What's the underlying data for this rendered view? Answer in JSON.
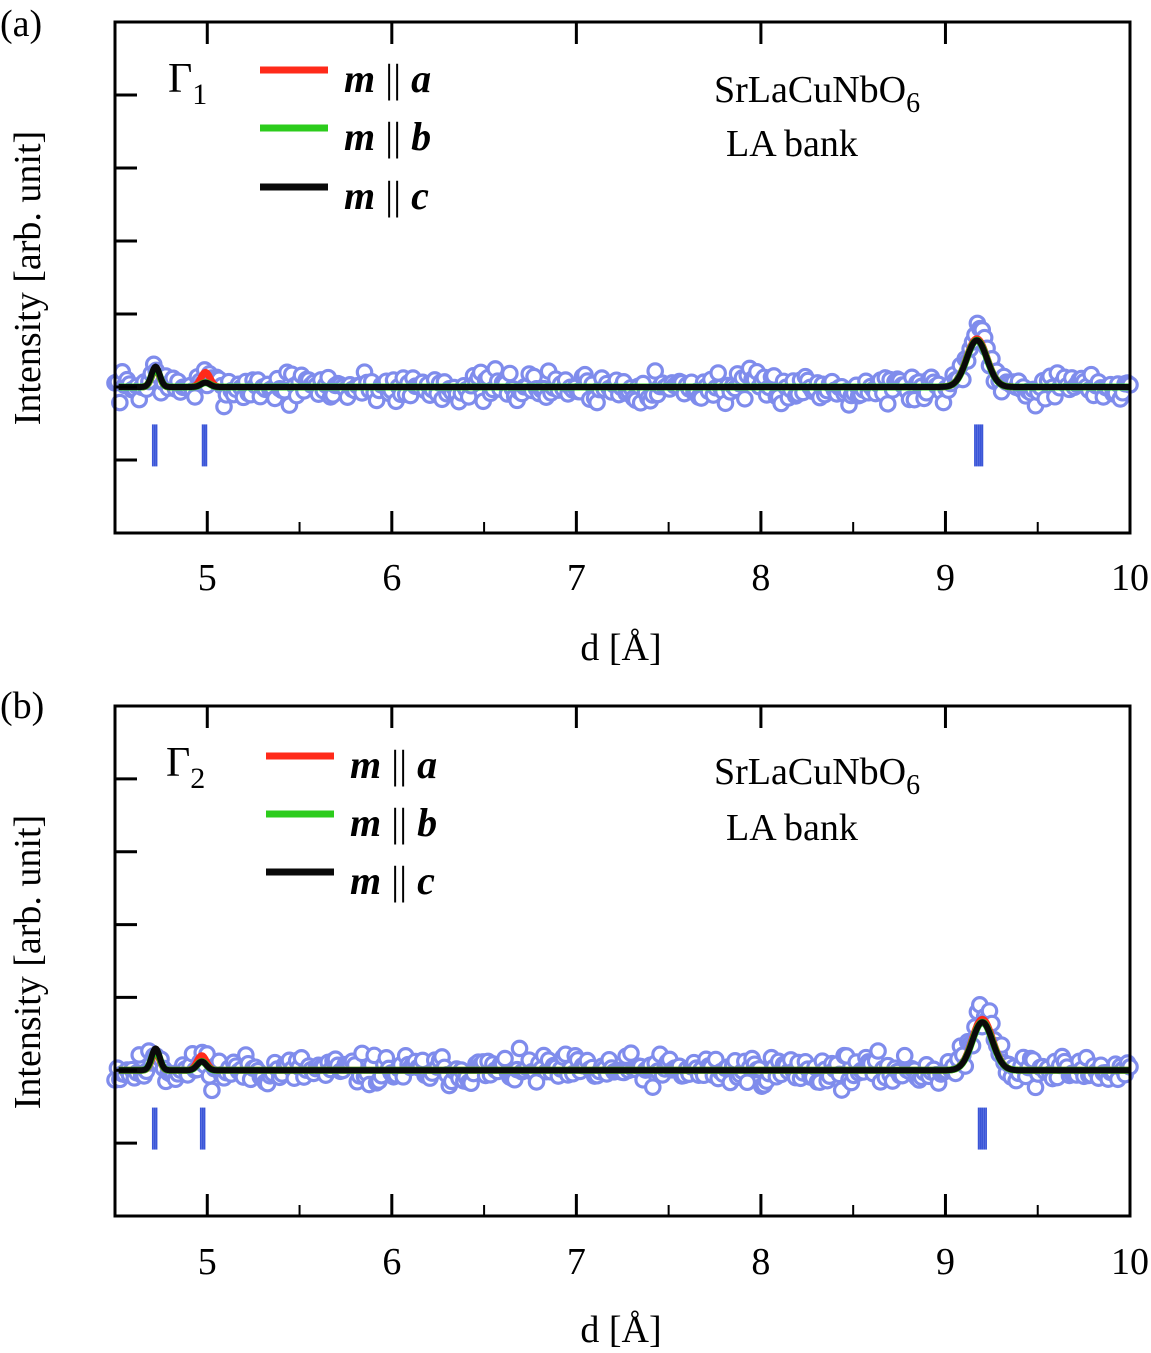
{
  "chart_data": [
    {
      "type": "line",
      "panel_label": "(a)",
      "irrep_symbol": "Γ",
      "irrep_index": "1",
      "compound_main": "SrLaCuNbO",
      "compound_sub": "6",
      "bank": "LA bank",
      "xlabel": "d [Å]",
      "ylabel": "Intensity [arb. unit]",
      "xlim": [
        4.5,
        10
      ],
      "ylim": [
        -1.0,
        2.5
      ],
      "xticks": [
        5,
        6,
        7,
        8,
        9,
        10
      ],
      "xtick_labels": [
        "5",
        "6",
        "7",
        "8",
        "9",
        "10"
      ],
      "yticks": [
        -0.5,
        0,
        0.5,
        1.0,
        1.5,
        2.0
      ],
      "grid": false,
      "legend_position": "top-left",
      "series": [
        {
          "name": "m || a",
          "label_m": "m",
          "label_sep": "||",
          "label_axis": "a",
          "color": "#ff2a1a",
          "baseline": 0,
          "peaks": [
            {
              "x": 4.72,
              "h": 0.12,
              "w": 0.022
            },
            {
              "x": 4.99,
              "h": 0.1,
              "w": 0.025
            },
            {
              "x": 9.17,
              "h": 0.33,
              "w": 0.055
            }
          ]
        },
        {
          "name": "m || b",
          "label_m": "m",
          "label_sep": "||",
          "label_axis": "b",
          "color": "#2ccc1c",
          "baseline": 0,
          "peaks": [
            {
              "x": 4.72,
              "h": 0.13,
              "w": 0.022
            },
            {
              "x": 4.99,
              "h": 0.03,
              "w": 0.025
            },
            {
              "x": 9.17,
              "h": 0.32,
              "w": 0.055
            }
          ]
        },
        {
          "name": "m || c",
          "label_m": "m",
          "label_sep": "||",
          "label_axis": "c",
          "color": "#0a0a0a",
          "baseline": 0,
          "peaks": [
            {
              "x": 4.72,
              "h": 0.14,
              "w": 0.022
            },
            {
              "x": 4.99,
              "h": 0.03,
              "w": 0.025
            },
            {
              "x": 9.17,
              "h": 0.32,
              "w": 0.055
            }
          ]
        }
      ],
      "observed": {
        "color": "#7f8cec",
        "x_start": 4.5,
        "x_end": 10.0,
        "count": 420,
        "noise_amplitude": 0.075,
        "error": 0.04,
        "peaks": [
          {
            "x": 4.72,
            "h": 0.13,
            "w": 0.022
          },
          {
            "x": 4.99,
            "h": 0.04,
            "w": 0.025
          },
          {
            "x": 9.18,
            "h": 0.4,
            "w": 0.06
          }
        ]
      },
      "bragg_ticks": {
        "color": "#3a55d8",
        "level": -0.4,
        "positions": [
          4.705,
          4.715,
          4.725,
          4.975,
          4.985,
          4.995,
          9.16,
          9.17,
          9.18,
          9.19,
          9.2
        ]
      }
    },
    {
      "type": "line",
      "panel_label": "(b)",
      "irrep_symbol": "Γ",
      "irrep_index": "2",
      "compound_main": "SrLaCuNbO",
      "compound_sub": "6",
      "bank": "LA bank",
      "xlabel": "d [Å]",
      "ylabel": "Intensity [arb. unit]",
      "xlim": [
        4.5,
        10
      ],
      "ylim": [
        -1.0,
        2.5
      ],
      "xticks": [
        5,
        6,
        7,
        8,
        9,
        10
      ],
      "xtick_labels": [
        "5",
        "6",
        "7",
        "8",
        "9",
        "10"
      ],
      "yticks": [
        -0.5,
        0,
        0.5,
        1.0,
        1.5,
        2.0
      ],
      "grid": false,
      "legend_position": "top-left",
      "series": [
        {
          "name": "m || a",
          "label_m": "m",
          "label_sep": "||",
          "label_axis": "a",
          "color": "#ff2a1a",
          "baseline": 0,
          "peaks": [
            {
              "x": 4.72,
              "h": 0.12,
              "w": 0.022
            },
            {
              "x": 4.97,
              "h": 0.1,
              "w": 0.025
            },
            {
              "x": 9.2,
              "h": 0.35,
              "w": 0.055
            }
          ]
        },
        {
          "name": "m || b",
          "label_m": "m",
          "label_sep": "||",
          "label_axis": "b",
          "color": "#2ccc1c",
          "baseline": 0,
          "peaks": [
            {
              "x": 4.72,
              "h": 0.14,
              "w": 0.022
            },
            {
              "x": 4.97,
              "h": 0.06,
              "w": 0.025
            },
            {
              "x": 9.2,
              "h": 0.33,
              "w": 0.055
            }
          ]
        },
        {
          "name": "m || c",
          "label_m": "m",
          "label_sep": "||",
          "label_axis": "c",
          "color": "#0a0a0a",
          "baseline": 0,
          "peaks": [
            {
              "x": 4.72,
              "h": 0.15,
              "w": 0.022
            },
            {
              "x": 4.97,
              "h": 0.06,
              "w": 0.025
            },
            {
              "x": 9.2,
              "h": 0.33,
              "w": 0.055
            }
          ]
        }
      ],
      "observed": {
        "color": "#7f8cec",
        "x_start": 4.5,
        "x_end": 10.0,
        "count": 420,
        "noise_amplitude": 0.075,
        "error": 0.04,
        "peaks": [
          {
            "x": 4.72,
            "h": 0.14,
            "w": 0.022
          },
          {
            "x": 4.97,
            "h": 0.07,
            "w": 0.025
          },
          {
            "x": 9.21,
            "h": 0.42,
            "w": 0.06
          }
        ]
      },
      "bragg_ticks": {
        "color": "#3a55d8",
        "level": -0.4,
        "positions": [
          4.705,
          4.715,
          4.725,
          4.965,
          4.975,
          4.985,
          9.18,
          9.19,
          9.2,
          9.21,
          9.22
        ]
      }
    }
  ]
}
